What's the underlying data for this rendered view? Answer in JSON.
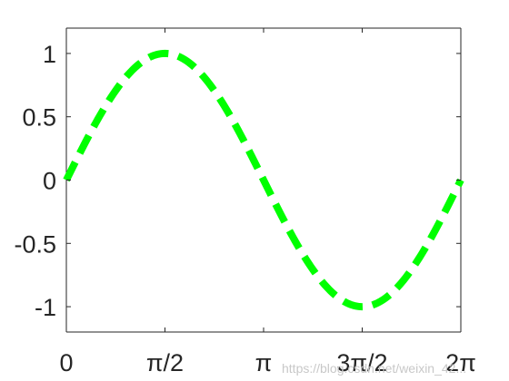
{
  "chart_data": {
    "type": "line",
    "title": "",
    "xlabel": "",
    "ylabel": "",
    "xlim": [
      0,
      6.283185307
    ],
    "ylim": [
      -1.2,
      1.2
    ],
    "grid": false,
    "legend": "none",
    "x_ticks": [
      {
        "value": 0,
        "label": "0"
      },
      {
        "value": 1.570796327,
        "label": "π/2"
      },
      {
        "value": 3.141592654,
        "label": "π"
      },
      {
        "value": 4.71238898,
        "label": "3π/2"
      },
      {
        "value": 6.283185307,
        "label": "2π"
      }
    ],
    "y_ticks": [
      {
        "value": 1,
        "label": "1"
      },
      {
        "value": 0.5,
        "label": "0.5"
      },
      {
        "value": 0,
        "label": "0"
      },
      {
        "value": -0.5,
        "label": "-0.5"
      },
      {
        "value": -1,
        "label": "-1"
      }
    ],
    "series": [
      {
        "color": "#00ff00",
        "line_style": "dashed",
        "x": [
          0,
          0.2618,
          0.5236,
          0.7854,
          1.0472,
          1.309,
          1.5708,
          1.8326,
          2.0944,
          2.3562,
          2.618,
          2.8798,
          3.1416,
          3.4034,
          3.6652,
          3.927,
          4.1888,
          4.4506,
          4.7124,
          4.9742,
          5.236,
          5.4978,
          5.7596,
          6.0214,
          6.2832
        ],
        "y": [
          0,
          0.2588,
          0.5,
          0.7071,
          0.866,
          0.9659,
          1,
          0.9659,
          0.866,
          0.7071,
          0.5,
          0.2588,
          0,
          -0.2588,
          -0.5,
          -0.7071,
          -0.866,
          -0.9659,
          -1,
          -0.9659,
          -0.866,
          -0.7071,
          -0.5,
          -0.2588,
          0
        ]
      }
    ]
  },
  "watermark": "https://blog.csdn.net/weixin_42..."
}
